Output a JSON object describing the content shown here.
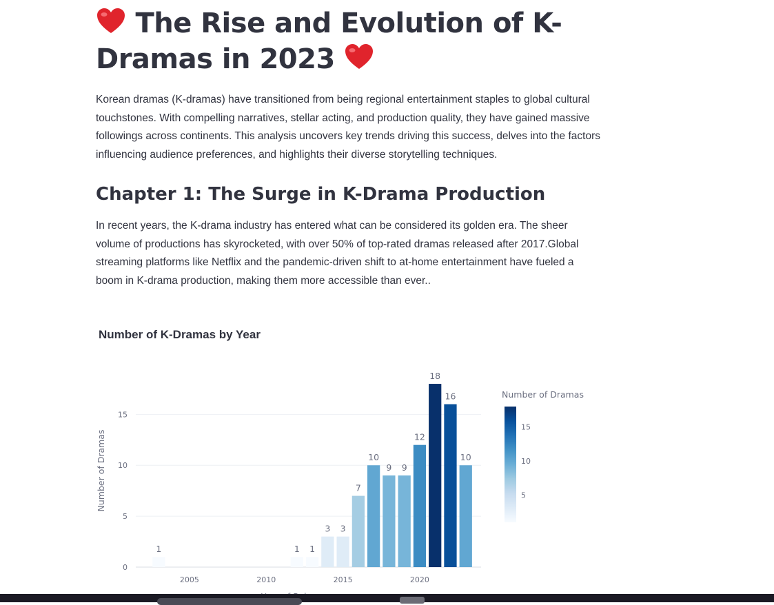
{
  "page": {
    "title": "The Rise and Evolution of K-Dramas in 2023",
    "title_icon": "red-heart-icon",
    "intro": "Korean dramas (K-dramas) have transitioned from being regional entertainment staples to global cultural touchstones. With compelling narratives, stellar acting, and production quality, they have gained massive followings across continents. This analysis uncovers key trends driving this success, delves into the factors influencing audience preferences, and highlights their diverse storytelling techniques.",
    "chapter1_heading": "Chapter 1: The Surge in K-Drama Production",
    "chapter1_text": "In recent years, the K-drama industry has entered what can be considered its golden era. The sheer volume of productions has skyrocketed, with over 50% of top-rated dramas released after 2017.Global streaming platforms like Netflix and the pandemic-driven shift to at-home entertainment have fueled a boom in K-drama production, making them more accessible than ever.."
  },
  "chart_data": {
    "type": "bar",
    "title": "Number of K-Dramas by Year",
    "xlabel": "Year of Release",
    "ylabel": "Number of Dramas",
    "x": [
      2003,
      2012,
      2013,
      2014,
      2015,
      2016,
      2017,
      2018,
      2019,
      2020,
      2021,
      2022,
      2023
    ],
    "values": [
      1,
      1,
      1,
      3,
      3,
      7,
      10,
      9,
      9,
      12,
      18,
      16,
      10
    ],
    "xlim": [
      2001.5,
      2024
    ],
    "ylim": [
      0,
      18.95
    ],
    "xticks": [
      2005,
      2010,
      2015,
      2020
    ],
    "yticks": [
      0,
      5,
      10,
      15
    ],
    "colorscale": "Blues",
    "colorbar": {
      "title": "Number of Dramas",
      "ticks": [
        5,
        10,
        15
      ],
      "range": [
        1,
        18
      ]
    },
    "grid": true,
    "text_labels": true
  }
}
